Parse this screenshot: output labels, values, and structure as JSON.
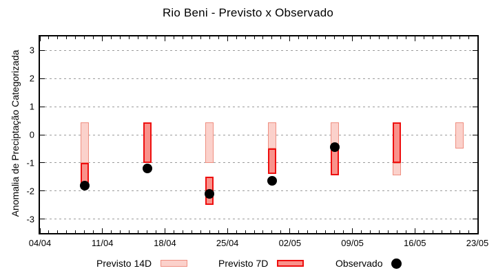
{
  "title": "Rio Beni - Previsto x Observado",
  "chart_data": {
    "type": "bar",
    "title": "Rio Beni - Previsto x Observado",
    "xlabel": "",
    "ylabel": "Anomalia de Preciptação Categorizada",
    "ylim": [
      -3.5,
      3.5
    ],
    "yticks": [
      -3,
      -2,
      -1,
      0,
      1,
      2,
      3
    ],
    "grid": "horizontal dotted gray lines at integer y values, no vertical grid",
    "x_axis": {
      "span_days": 49,
      "minor_tick_interval_days": 1,
      "major_tick_interval_days": 7,
      "major_ticks": [
        {
          "day": 0,
          "label": "04/04"
        },
        {
          "day": 7,
          "label": "11/04"
        },
        {
          "day": 14,
          "label": "18/04"
        },
        {
          "day": 21,
          "label": "25/04"
        },
        {
          "day": 28,
          "label": "02/05"
        },
        {
          "day": 35,
          "label": "09/05"
        },
        {
          "day": 42,
          "label": "16/05"
        },
        {
          "day": 49,
          "label": "23/05"
        }
      ]
    },
    "series_styles": {
      "previsto14d": {
        "fill": "#fbd1cb",
        "border": "#ef8e80"
      },
      "previsto7d": {
        "fill": "#f9928b",
        "border": "#ee0e0e"
      },
      "observado": {
        "color": "#000000"
      }
    },
    "groups": [
      {
        "date": "09/04",
        "day": 5,
        "bars": [
          {
            "series": "previsto14d",
            "from": 0.45,
            "to": -1.0
          },
          {
            "series": "previsto7d",
            "from": -1.0,
            "to": -1.9
          }
        ],
        "observed": -1.8
      },
      {
        "date": "16/04",
        "day": 12,
        "bars": [
          {
            "series": "previsto7d",
            "from": 0.45,
            "to": -1.0
          }
        ],
        "observed": -1.2
      },
      {
        "date": "23/04",
        "day": 19,
        "bars": [
          {
            "series": "previsto14d",
            "from": 0.45,
            "to": -1.0
          },
          {
            "series": "previsto7d",
            "from": -1.5,
            "to": -2.5
          }
        ],
        "observed": -2.1
      },
      {
        "date": "30/04",
        "day": 26,
        "bars": [
          {
            "series": "previsto14d",
            "from": 0.45,
            "to": -0.5
          },
          {
            "series": "previsto7d",
            "from": -0.5,
            "to": -1.4
          }
        ],
        "observed": -1.65
      },
      {
        "date": "07/05",
        "day": 33,
        "bars": [
          {
            "series": "previsto14d",
            "from": 0.45,
            "to": -0.45
          },
          {
            "series": "previsto7d",
            "from": -0.45,
            "to": -1.45
          }
        ],
        "observed": -0.45
      },
      {
        "date": "14/05",
        "day": 40,
        "bars": [
          {
            "series": "previsto7d",
            "from": 0.45,
            "to": -1.0
          },
          {
            "series": "previsto14d",
            "from": -1.0,
            "to": -1.45
          }
        ],
        "observed": null
      },
      {
        "date": "21/05",
        "day": 47,
        "bars": [
          {
            "series": "previsto14d",
            "from": 0.45,
            "to": -0.5
          }
        ],
        "observed": null
      }
    ],
    "legend": {
      "position": "bottom",
      "entries": [
        {
          "label": "Previsto 14D",
          "series": "previsto14d"
        },
        {
          "label": "Previsto 7D",
          "series": "previsto7d"
        },
        {
          "label": "Observado",
          "series": "observado"
        }
      ]
    }
  }
}
